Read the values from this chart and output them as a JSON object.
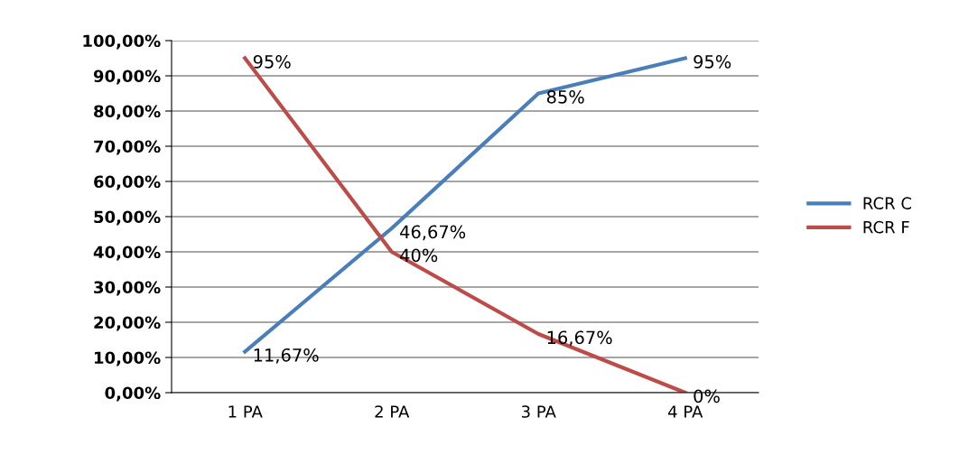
{
  "chart_data": {
    "type": "line",
    "categories": [
      "1 PA",
      "2 PA",
      "3 PA",
      "4 PA"
    ],
    "series": [
      {
        "name": "RCR C",
        "color": "#4a7ebb",
        "values": [
          11.67,
          46.67,
          85,
          95
        ],
        "value_labels": [
          "11,67%",
          "46,67%",
          "85%",
          "95%"
        ]
      },
      {
        "name": "RCR F",
        "color": "#be4b48",
        "values": [
          95,
          40,
          16.67,
          0
        ],
        "value_labels": [
          "95%",
          "40%",
          "16,67%",
          "0%"
        ]
      }
    ],
    "ylim": [
      0,
      100
    ],
    "yticks": [
      {
        "value": 0,
        "label": "0,00%"
      },
      {
        "value": 10,
        "label": "10,00%"
      },
      {
        "value": 20,
        "label": "20,00%"
      },
      {
        "value": 30,
        "label": "30,00%"
      },
      {
        "value": 40,
        "label": "40,00%"
      },
      {
        "value": 50,
        "label": "50,00%"
      },
      {
        "value": 60,
        "label": "60,00%"
      },
      {
        "value": 70,
        "label": "70,00%"
      },
      {
        "value": 80,
        "label": "80,00%"
      },
      {
        "value": 90,
        "label": "90,00%"
      },
      {
        "value": 100,
        "label": "100,00%"
      }
    ],
    "grid": "y",
    "legend": "right",
    "marker": "none",
    "line_style": "solid"
  }
}
